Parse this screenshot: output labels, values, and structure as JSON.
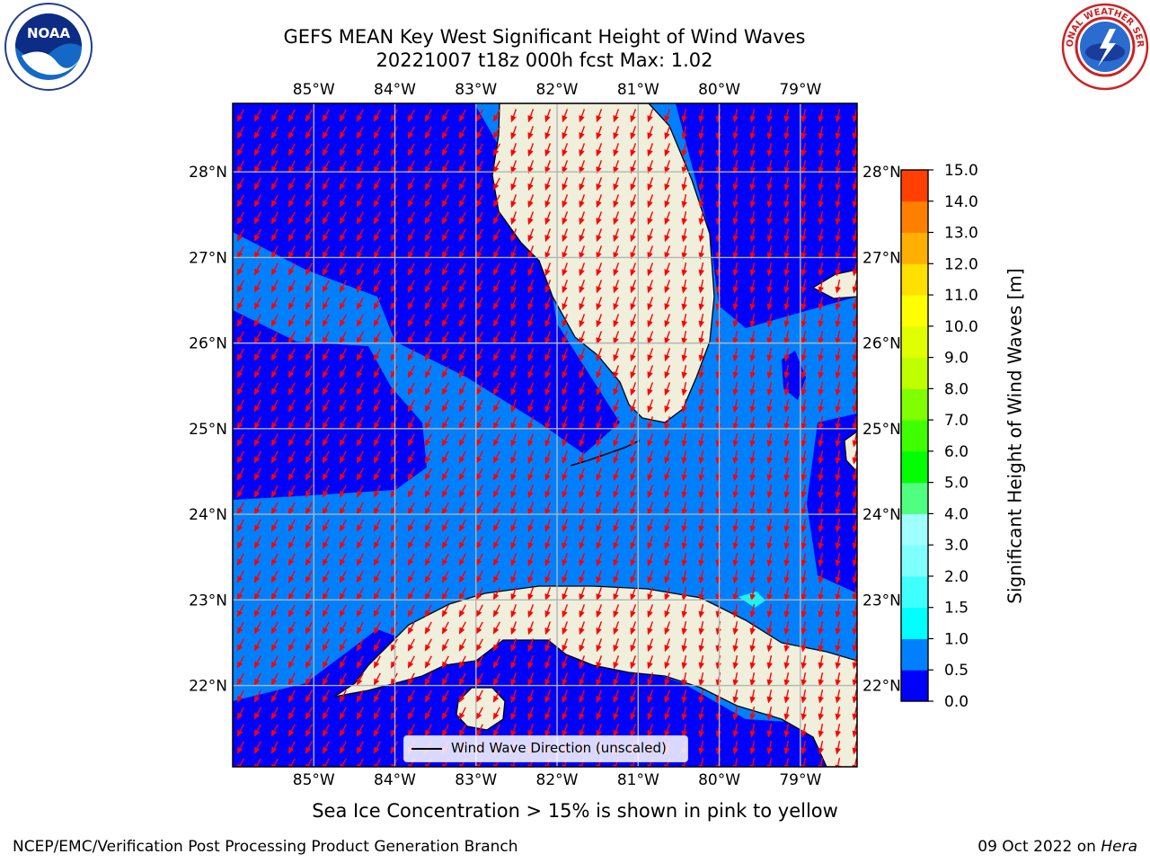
{
  "title": {
    "line1": "GEFS MEAN Key West Significant Height of Wind Waves",
    "line2": "20221007 t18z 000h fcst   Max: 1.02"
  },
  "logos": {
    "left": "NOAA",
    "left_ring": "NATIONAL OCEANIC AND ATMOSPHERIC ADMINISTRATION · U.S. DEPARTMENT OF COMMERCE",
    "right_ring": "NATIONAL WEATHER SERVICE"
  },
  "map": {
    "lon_labels": [
      "85°W",
      "84°W",
      "83°W",
      "82°W",
      "81°W",
      "80°W",
      "79°W"
    ],
    "lat_labels": [
      "28°N",
      "27°N",
      "26°N",
      "25°N",
      "24°N",
      "23°N",
      "22°N"
    ],
    "lon_values": [
      -85,
      -84,
      -83,
      -82,
      -81,
      -80,
      -79
    ],
    "lat_values": [
      28,
      27,
      26,
      25,
      24,
      23,
      22
    ],
    "extent": {
      "lon_min": -86,
      "lon_max": -78.3,
      "lat_min": 21.05,
      "lat_max": 28.8
    },
    "legend_label": "Wind Wave Direction (unscaled)",
    "arrow_color": "#ff0000",
    "land_color": "#efefdc",
    "regions": [
      "Florida",
      "Cuba",
      "Isla de la Juventud",
      "Bahamas"
    ]
  },
  "colorbar": {
    "label": "Significant Height of Wind Waves [m]",
    "ticks": [
      "0.0",
      "0.5",
      "1.0",
      "1.5",
      "2.0",
      "3.0",
      "4.0",
      "5.0",
      "6.0",
      "7.0",
      "8.0",
      "9.0",
      "10.0",
      "11.0",
      "12.0",
      "13.0",
      "14.0",
      "15.0"
    ],
    "colors": [
      "#0000ff",
      "#0080ff",
      "#00ffff",
      "#40ffff",
      "#80ffff",
      "#a0ffff",
      "#50ff80",
      "#00ff00",
      "#40ff00",
      "#80ff00",
      "#c0ff00",
      "#e0ff00",
      "#ffff00",
      "#ffe000",
      "#ffb000",
      "#ff8000",
      "#ff4000",
      "#ff0000"
    ]
  },
  "caption": "Sea Ice Concentration > 15% is shown in pink to yellow",
  "footer": {
    "left": "NCEP/EMC/Verification Post Processing Product Generation Branch",
    "right_date": "09 Oct 2022 on ",
    "right_host": "Hera"
  }
}
